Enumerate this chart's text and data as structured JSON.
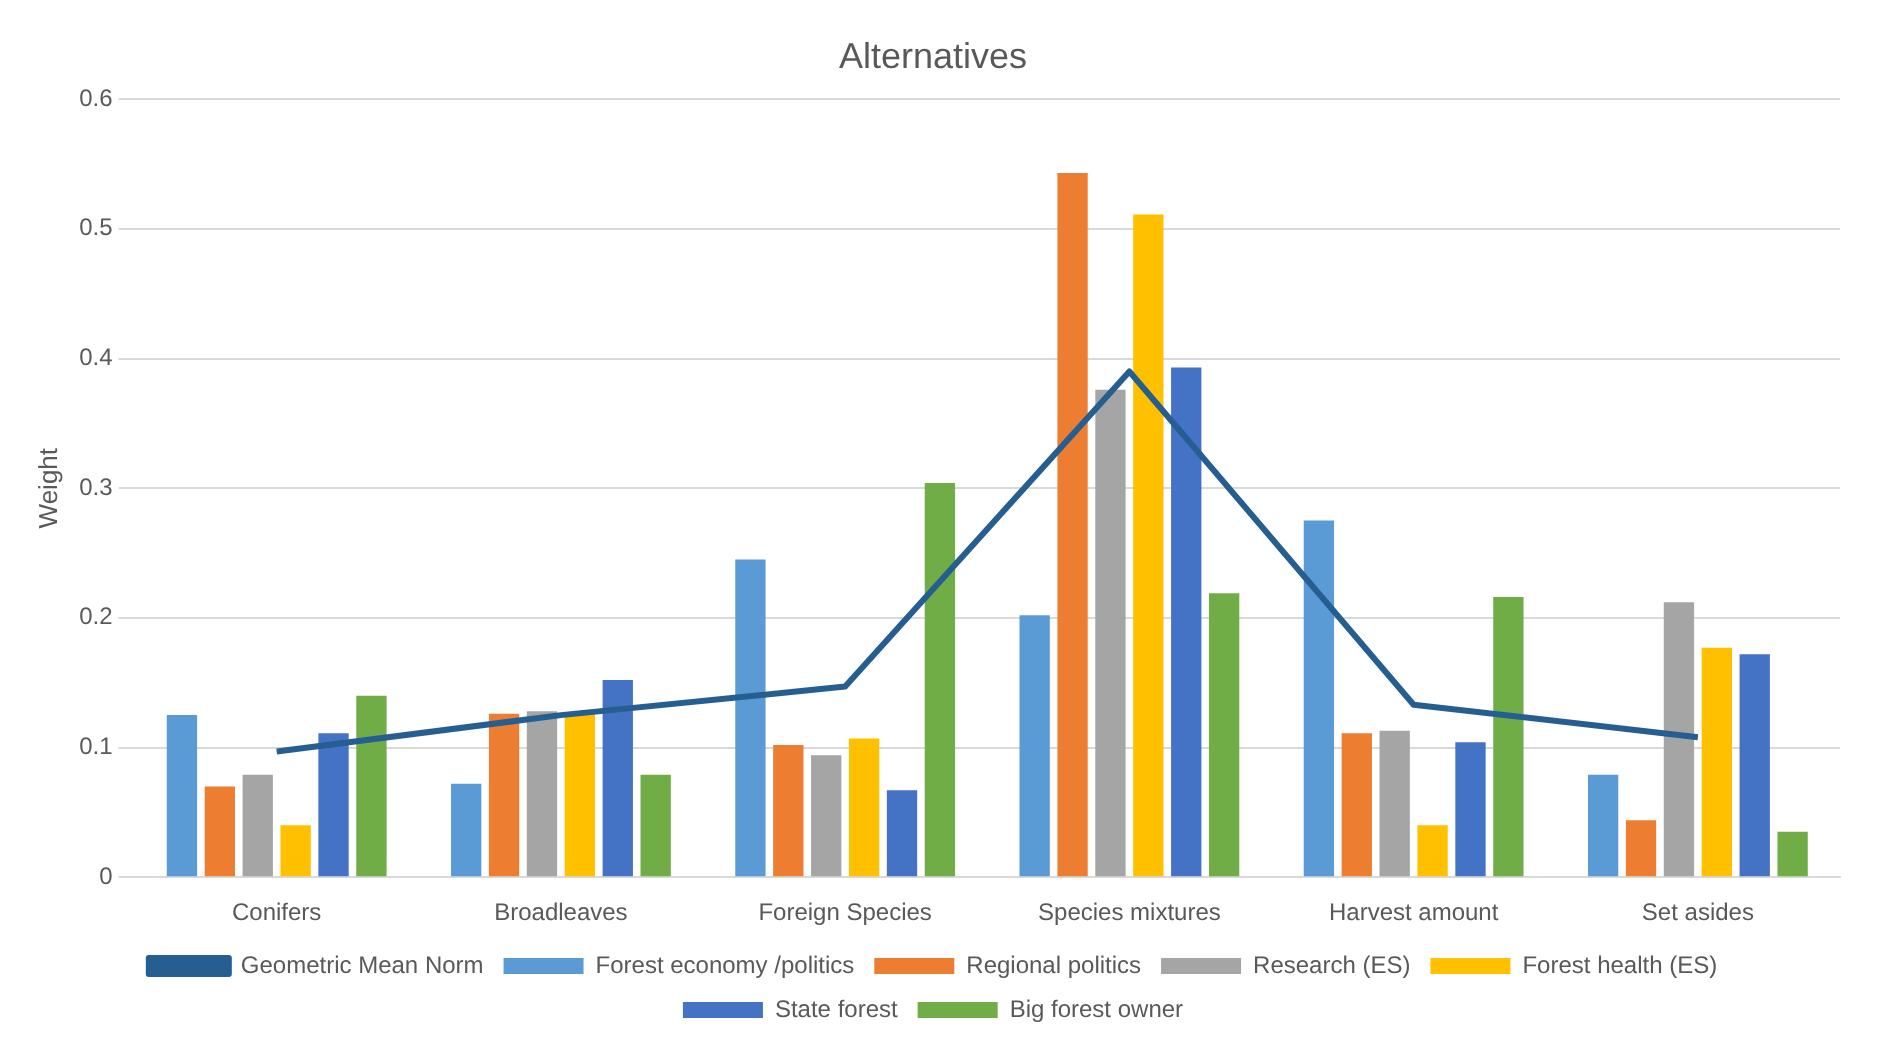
{
  "chart_data": {
    "type": "bar",
    "title": "Alternatives",
    "ylabel": "Weight",
    "categories": [
      "Conifers",
      "Broadleaves",
      "Foreign Species",
      "Species mixtures",
      "Harvest amount",
      "Set asides"
    ],
    "series": [
      {
        "name": "Forest economy /politics",
        "color": "#5b9bd5",
        "values": [
          0.125,
          0.072,
          0.245,
          0.202,
          0.275,
          0.079
        ]
      },
      {
        "name": "Regional politics",
        "color": "#ed7d31",
        "values": [
          0.07,
          0.126,
          0.102,
          0.543,
          0.111,
          0.044
        ]
      },
      {
        "name": "Research (ES)",
        "color": "#a5a5a5",
        "values": [
          0.079,
          0.128,
          0.094,
          0.376,
          0.113,
          0.212
        ]
      },
      {
        "name": "Forest health (ES)",
        "color": "#ffc000",
        "values": [
          0.04,
          0.126,
          0.107,
          0.511,
          0.04,
          0.177
        ]
      },
      {
        "name": "State forest",
        "color": "#4472c4",
        "values": [
          0.111,
          0.152,
          0.067,
          0.393,
          0.104,
          0.172
        ]
      },
      {
        "name": "Big forest owner",
        "color": "#70ad47",
        "values": [
          0.14,
          0.079,
          0.304,
          0.219,
          0.216,
          0.035
        ]
      },
      {
        "name": "Geometric Mean Norm",
        "color": "#255e91",
        "type": "line",
        "marker": "none",
        "line_style": "solid",
        "values": [
          0.097,
          0.125,
          0.147,
          0.39,
          0.133,
          0.108
        ]
      }
    ],
    "ylim": [
      0,
      0.6
    ],
    "yticks": [
      0,
      0.1,
      0.2,
      0.3,
      0.4,
      0.5,
      0.6
    ],
    "grid": "y",
    "legend": "bottom"
  }
}
